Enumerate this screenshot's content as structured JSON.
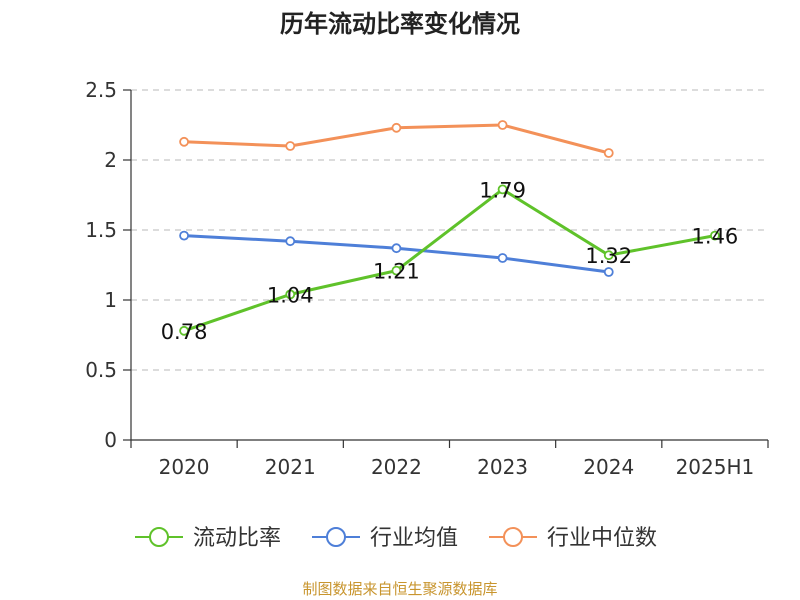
{
  "chart_data": {
    "type": "line",
    "title": "历年流动比率变化情况",
    "categories": [
      "2020",
      "2021",
      "2022",
      "2023",
      "2024",
      "2025H1"
    ],
    "ylim": [
      0,
      2.5
    ],
    "yticks": [
      "0",
      "0.5",
      "1",
      "1.5",
      "2",
      "2.5"
    ],
    "grid": true,
    "legend_position": "bottom",
    "series": [
      {
        "name": "流动比率",
        "color": "#5fc22a",
        "values": [
          0.78,
          1.04,
          1.21,
          1.79,
          1.32,
          1.46
        ],
        "labels": [
          "0.78",
          "1.04",
          "1.21",
          "1.79",
          "1.32",
          "1.46"
        ]
      },
      {
        "name": "行业均值",
        "color": "#4e7fd8",
        "values": [
          1.46,
          1.42,
          1.37,
          1.3,
          1.2,
          null
        ]
      },
      {
        "name": "行业中位数",
        "color": "#f39159",
        "values": [
          2.13,
          2.1,
          2.23,
          2.25,
          2.05,
          null
        ]
      }
    ]
  },
  "footer": {
    "source": "制图数据来自恒生聚源数据库"
  }
}
